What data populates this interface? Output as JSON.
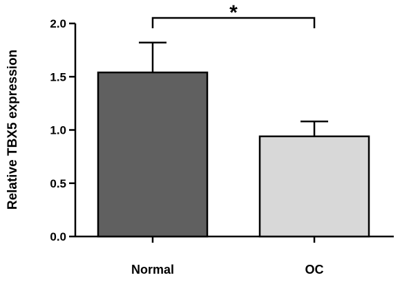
{
  "chart_data": {
    "type": "bar",
    "categories": [
      "Normal",
      "OC"
    ],
    "values": [
      1.54,
      0.94
    ],
    "errors": [
      0.28,
      0.14
    ],
    "colors": [
      "#606060",
      "#d8d8d8"
    ],
    "title": "",
    "xlabel": "",
    "ylabel": "Relative TBX5 expression",
    "ylim": [
      0,
      2.0
    ],
    "yticks": [
      "0.0",
      "0.5",
      "1.0",
      "1.5",
      "2.0"
    ],
    "yticks_values": [
      0,
      0.5,
      1.0,
      1.5,
      2.0
    ],
    "significance": {
      "between": [
        0,
        1
      ],
      "label": "*"
    },
    "grid": false
  }
}
